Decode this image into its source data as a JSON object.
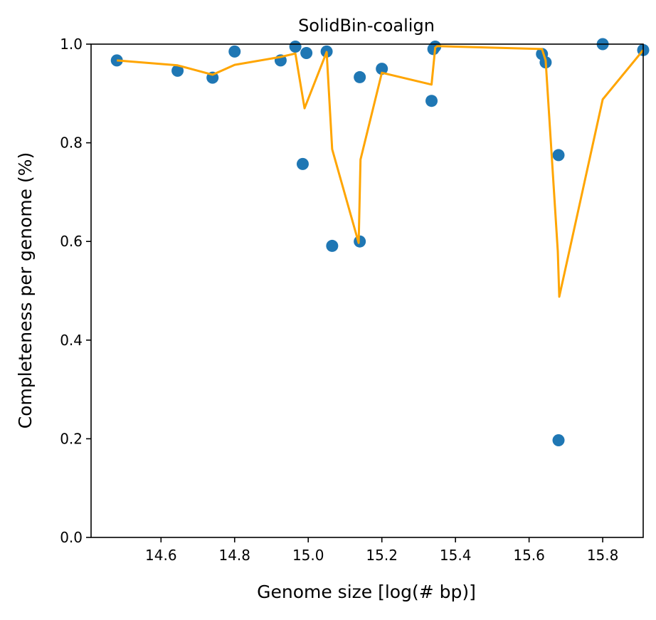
{
  "chart_data": {
    "type": "scatter",
    "title": "SolidBin-coalign",
    "xlabel": "Genome size [log(# bp)]",
    "ylabel": "Completeness per genome (%)",
    "xlim": [
      14.41,
      15.91
    ],
    "ylim": [
      0.0,
      1.0
    ],
    "x_ticks": [
      14.6,
      14.8,
      15.0,
      15.2,
      15.4,
      15.6,
      15.8
    ],
    "x_tick_labels": [
      "14.6",
      "14.8",
      "15.0",
      "15.2",
      "15.4",
      "15.6",
      "15.8"
    ],
    "y_ticks": [
      0.0,
      0.2,
      0.4,
      0.6,
      0.8,
      1.0
    ],
    "y_tick_labels": [
      "0.0",
      "0.2",
      "0.4",
      "0.6",
      "0.8",
      "1.0"
    ],
    "grid": false,
    "legend": "none",
    "series": [
      {
        "kind": "scatter",
        "color": "#1f77b4",
        "points": [
          [
            14.48,
            0.967
          ],
          [
            14.645,
            0.946
          ],
          [
            14.74,
            0.932
          ],
          [
            14.8,
            0.985
          ],
          [
            14.925,
            0.967
          ],
          [
            14.965,
            0.995
          ],
          [
            14.985,
            0.757
          ],
          [
            14.995,
            0.982
          ],
          [
            15.05,
            0.985
          ],
          [
            15.065,
            0.591
          ],
          [
            15.14,
            0.6
          ],
          [
            15.14,
            0.933
          ],
          [
            15.2,
            0.95
          ],
          [
            15.335,
            0.885
          ],
          [
            15.34,
            0.99
          ],
          [
            15.345,
            0.995
          ],
          [
            15.635,
            0.98
          ],
          [
            15.645,
            0.963
          ],
          [
            15.68,
            0.775
          ],
          [
            15.68,
            0.197
          ],
          [
            15.8,
            1.0
          ],
          [
            15.91,
            0.988
          ]
        ]
      },
      {
        "kind": "line",
        "color": "#ffa500",
        "points": [
          [
            14.48,
            0.967
          ],
          [
            14.645,
            0.957
          ],
          [
            14.74,
            0.938
          ],
          [
            14.8,
            0.958
          ],
          [
            14.925,
            0.974
          ],
          [
            14.965,
            0.981
          ],
          [
            14.99,
            0.87
          ],
          [
            15.05,
            0.984
          ],
          [
            15.065,
            0.787
          ],
          [
            15.137,
            0.597
          ],
          [
            15.142,
            0.766
          ],
          [
            15.2,
            0.942
          ],
          [
            15.335,
            0.918
          ],
          [
            15.345,
            0.993
          ],
          [
            15.35,
            0.996
          ],
          [
            15.635,
            0.99
          ],
          [
            15.645,
            0.967
          ],
          [
            15.678,
            0.58
          ],
          [
            15.682,
            0.488
          ],
          [
            15.8,
            0.888
          ],
          [
            15.91,
            0.988
          ]
        ]
      }
    ]
  }
}
